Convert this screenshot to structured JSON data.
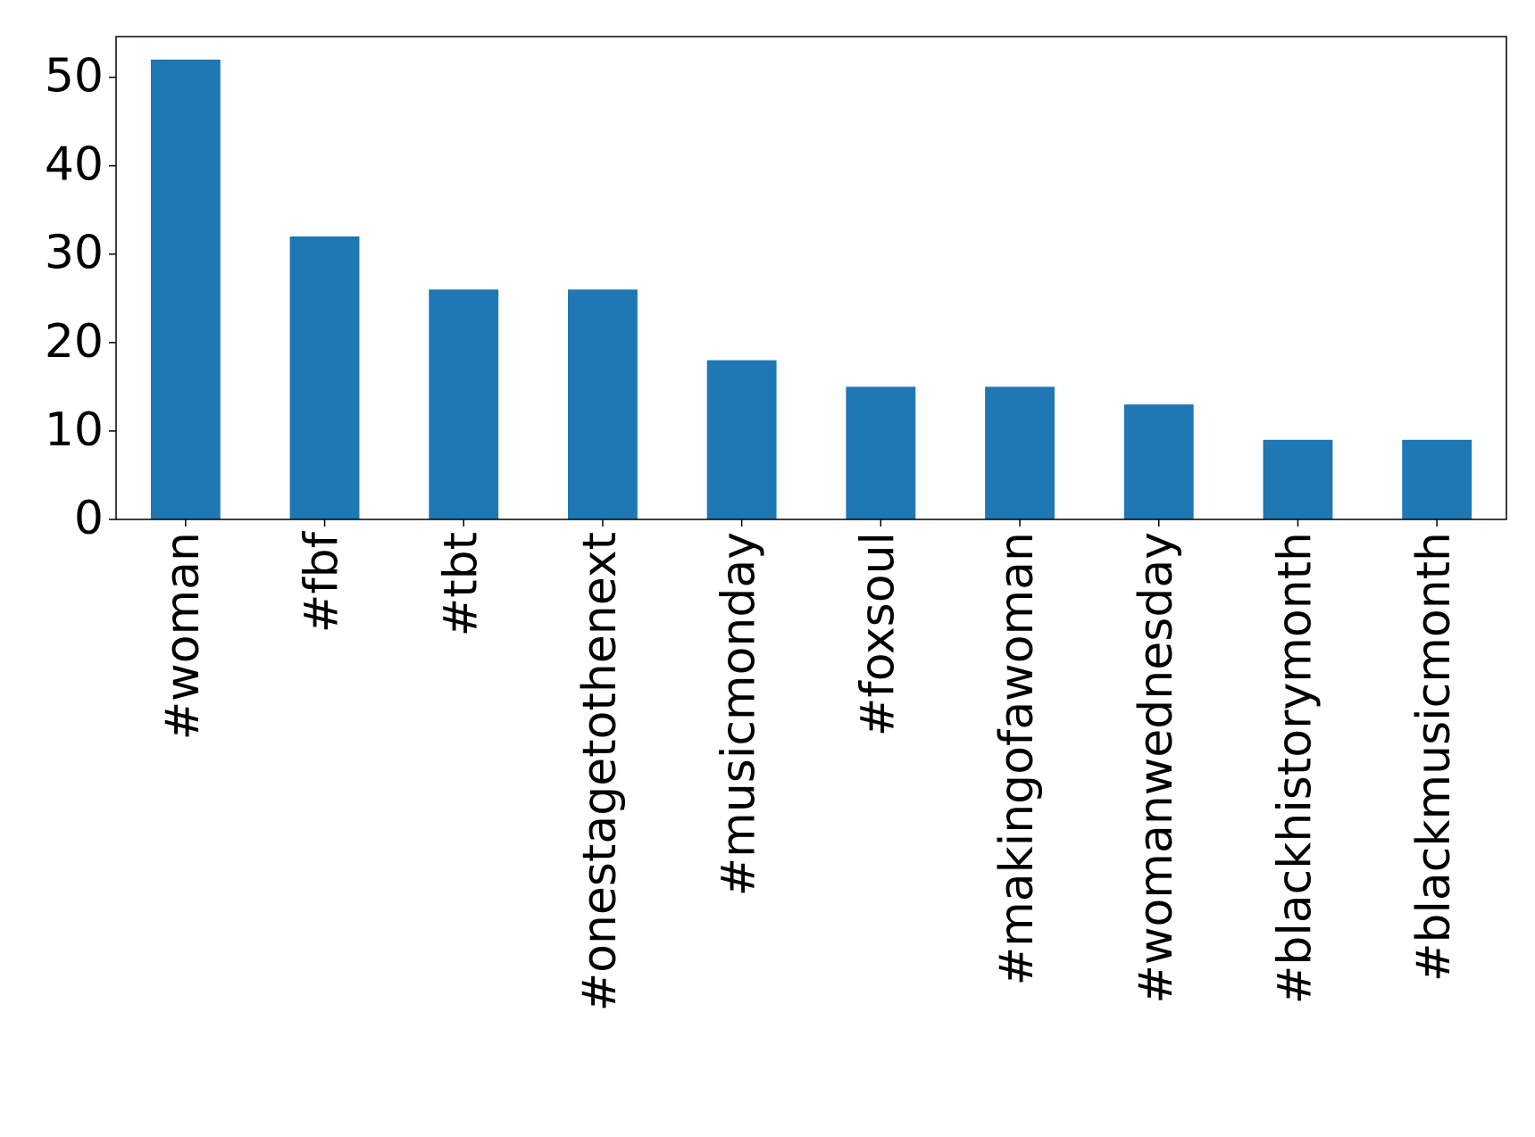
{
  "chart_data": {
    "type": "bar",
    "categories": [
      "#woman",
      "#fbf",
      "#tbt",
      "#onestagetothenext",
      "#musicmonday",
      "#foxsoul",
      "#makingofawoman",
      "#womanwednesday",
      "#blackhistorymonth",
      "#blackmusicmonth"
    ],
    "values": [
      52,
      32,
      26,
      26,
      18,
      15,
      15,
      13,
      9,
      9
    ],
    "color": "#1f77b4",
    "ylim": [
      0,
      54.6
    ],
    "yticks": [
      0,
      10,
      20,
      30,
      40,
      50
    ],
    "grid": false
  }
}
